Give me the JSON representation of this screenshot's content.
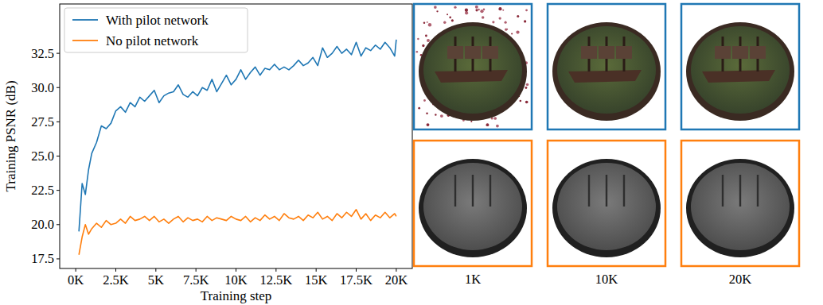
{
  "chart_data": {
    "type": "line",
    "x": [
      200,
      400,
      600,
      800,
      1000,
      1300,
      1600,
      1900,
      2200,
      2500,
      2800,
      3100,
      3400,
      3700,
      4000,
      4300,
      4600,
      4900,
      5200,
      5500,
      5800,
      6100,
      6400,
      6700,
      7000,
      7300,
      7600,
      7900,
      8200,
      8500,
      8800,
      9100,
      9400,
      9700,
      10000,
      10300,
      10600,
      10900,
      11200,
      11500,
      11800,
      12100,
      12400,
      12700,
      13000,
      13300,
      13600,
      13900,
      14200,
      14500,
      14800,
      15100,
      15400,
      15700,
      16000,
      16300,
      16600,
      16900,
      17200,
      17500,
      17800,
      18100,
      18400,
      18700,
      19000,
      19300,
      19600,
      19900,
      20000
    ],
    "series": [
      {
        "name": "With pilot network",
        "color": "#1f77b4",
        "values": [
          19.5,
          23.0,
          22.2,
          24.0,
          25.2,
          26.0,
          27.2,
          27.0,
          27.4,
          28.3,
          28.6,
          28.2,
          28.9,
          28.6,
          29.3,
          29.0,
          29.4,
          29.8,
          28.9,
          29.4,
          29.6,
          29.7,
          30.2,
          29.5,
          29.3,
          29.7,
          29.4,
          30.0,
          29.8,
          30.6,
          29.7,
          30.3,
          30.9,
          30.2,
          30.6,
          31.3,
          30.6,
          31.1,
          31.5,
          30.9,
          31.4,
          31.3,
          31.7,
          31.3,
          31.5,
          31.3,
          31.6,
          32.0,
          31.6,
          31.8,
          32.2,
          31.6,
          32.9,
          32.2,
          32.5,
          33.0,
          32.5,
          32.8,
          32.4,
          33.3,
          32.3,
          32.9,
          32.7,
          33.1,
          32.8,
          33.3,
          32.9,
          32.3,
          33.5
        ]
      },
      {
        "name": "No pilot network",
        "color": "#ff7f0e",
        "values": [
          17.8,
          19.1,
          20.0,
          19.3,
          19.7,
          20.1,
          19.8,
          20.3,
          20.0,
          20.1,
          20.4,
          20.1,
          20.6,
          20.3,
          20.4,
          20.6,
          20.3,
          20.6,
          20.2,
          20.4,
          20.1,
          20.4,
          20.6,
          20.2,
          20.5,
          20.3,
          20.4,
          20.2,
          20.6,
          20.3,
          20.5,
          20.4,
          20.3,
          20.6,
          20.4,
          20.3,
          20.6,
          20.2,
          20.5,
          20.3,
          20.7,
          20.4,
          20.6,
          20.3,
          20.8,
          20.5,
          20.4,
          20.6,
          20.3,
          20.7,
          20.5,
          20.9,
          20.4,
          20.6,
          20.3,
          20.8,
          20.5,
          20.9,
          20.6,
          21.1,
          20.4,
          20.8,
          20.3,
          20.7,
          20.5,
          20.9,
          20.5,
          20.8,
          20.6
        ]
      }
    ],
    "x_label": "Training step",
    "y_label": "Training PSNR (dB)",
    "xlim": [
      -1000,
      21000
    ],
    "ylim": [
      16.8,
      36.1
    ],
    "xticks": [
      {
        "value": 0,
        "label": "0K"
      },
      {
        "value": 2500,
        "label": "2.5K"
      },
      {
        "value": 5000,
        "label": "5K"
      },
      {
        "value": 7500,
        "label": "7.5K"
      },
      {
        "value": 10000,
        "label": "10K"
      },
      {
        "value": 12500,
        "label": "12.5K"
      },
      {
        "value": 15000,
        "label": "15K"
      },
      {
        "value": 17500,
        "label": "17.5K"
      },
      {
        "value": 20000,
        "label": "20K"
      }
    ],
    "yticks": [
      17.5,
      {
        "value": 20,
        "label": "20.0"
      },
      22.5,
      {
        "value": 25,
        "label": "25.0"
      },
      27.5,
      {
        "value": 30,
        "label": "30.0"
      },
      32.5
    ],
    "legend": "upper left",
    "grid": false
  },
  "panels": {
    "labels": [
      "1K",
      "10K",
      "20K"
    ]
  }
}
